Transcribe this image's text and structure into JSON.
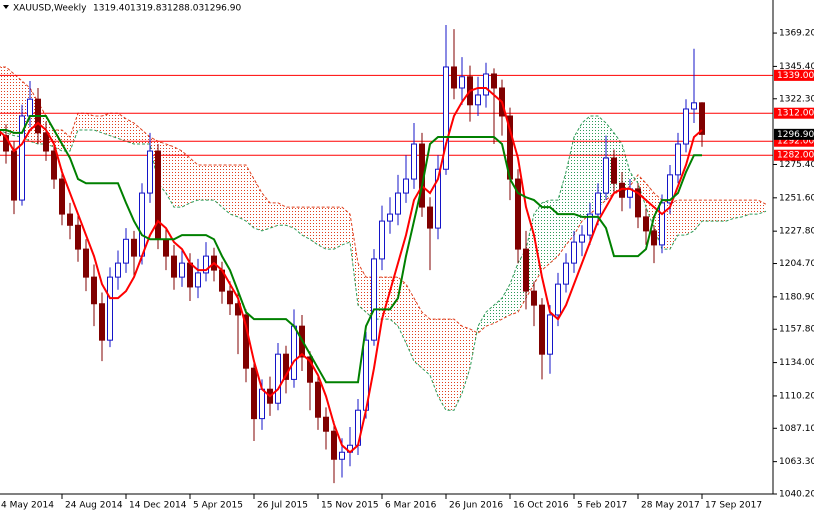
{
  "chart_data": {
    "type": "candlestick",
    "symbol": "XAUUSD,Weekly",
    "header_values": [
      "1319.40",
      "1319.83",
      "1288.03",
      "1296.90"
    ],
    "categories": [
      "4 May 2014",
      null,
      null,
      null,
      null,
      null,
      null,
      null,
      "24 Aug 2014",
      null,
      null,
      null,
      null,
      null,
      null,
      null,
      "14 Dec 2014",
      null,
      null,
      null,
      null,
      null,
      null,
      null,
      "5 Apr 2015",
      null,
      null,
      null,
      null,
      null,
      null,
      null,
      "26 Jul 2015",
      null,
      null,
      null,
      null,
      null,
      null,
      null,
      "15 Nov 2015",
      null,
      null,
      null,
      null,
      null,
      null,
      null,
      "6 Mar 2016",
      null,
      null,
      null,
      null,
      null,
      null,
      null,
      "26 Jun 2016",
      null,
      null,
      null,
      null,
      null,
      null,
      null,
      "16 Oct 2016",
      null,
      null,
      null,
      null,
      null,
      null,
      null,
      "5 Feb 2017",
      null,
      null,
      null,
      null,
      null,
      null,
      null,
      "28 May 2017",
      null,
      null,
      null,
      null,
      null,
      null,
      null,
      "17 Sep 2017",
      null,
      null,
      null,
      null,
      null,
      null,
      null,
      null
    ],
    "candles": {
      "up_color": "#1414c8",
      "down_color": "#800000",
      "open": [
        1300,
        1296,
        1285,
        1250,
        1310,
        1322,
        1298,
        1285,
        1265,
        1240,
        1232,
        1215,
        1195,
        1176,
        1150,
        1195,
        1205,
        1222,
        1210,
        1255,
        1285,
        1222,
        1210,
        1195,
        1205,
        1188,
        1198,
        1210,
        1200,
        1185,
        1176,
        1168,
        1130,
        1094,
        1115,
        1105,
        1140,
        1122,
        1160,
        1138,
        1120,
        1095,
        1085,
        1065,
        1070,
        1075,
        1100,
        1150,
        1208,
        1235,
        1240,
        1255,
        1265,
        1290,
        1245,
        1230,
        1272,
        1345,
        1330,
        1338,
        1318,
        1325,
        1340,
        1330,
        1310,
        1265,
        1215,
        1185,
        1175,
        1140,
        1168,
        1190,
        1205,
        1220,
        1225,
        1240,
        1255,
        1280,
        1262,
        1252,
        1258,
        1238,
        1228,
        1218,
        1248,
        1268,
        1290,
        1315,
        1319.4,
        null,
        null,
        null,
        null,
        null,
        null,
        null,
        null
      ],
      "high": [
        1312,
        1304,
        1292,
        1318,
        1335,
        1330,
        1306,
        1292,
        1272,
        1248,
        1240,
        1222,
        1204,
        1184,
        1202,
        1214,
        1230,
        1228,
        1262,
        1298,
        1290,
        1230,
        1218,
        1214,
        1212,
        1208,
        1220,
        1216,
        1206,
        1192,
        1184,
        1172,
        1136,
        1122,
        1124,
        1148,
        1146,
        1172,
        1168,
        1142,
        1126,
        1102,
        1092,
        1080,
        1088,
        1108,
        1156,
        1215,
        1246,
        1252,
        1268,
        1282,
        1305,
        1298,
        1252,
        1282,
        1375,
        1372,
        1352,
        1346,
        1338,
        1348,
        1344,
        1336,
        1316,
        1272,
        1228,
        1192,
        1180,
        1175,
        1198,
        1212,
        1228,
        1232,
        1248,
        1262,
        1296,
        1286,
        1270,
        1265,
        1262,
        1244,
        1232,
        1254,
        1275,
        1298,
        1322,
        1358,
        1319.83,
        null,
        null,
        null,
        null,
        null,
        null,
        null,
        null
      ],
      "low": [
        1288,
        1276,
        1240,
        1246,
        1302,
        1290,
        1278,
        1258,
        1232,
        1222,
        1206,
        1185,
        1160,
        1135,
        1145,
        1186,
        1198,
        1196,
        1204,
        1248,
        1215,
        1200,
        1186,
        1188,
        1178,
        1180,
        1192,
        1192,
        1176,
        1168,
        1140,
        1120,
        1078,
        1086,
        1096,
        1100,
        1112,
        1116,
        1128,
        1100,
        1086,
        1072,
        1048,
        1052,
        1060,
        1068,
        1094,
        1146,
        1200,
        1226,
        1232,
        1248,
        1258,
        1238,
        1200,
        1222,
        1268,
        1322,
        1318,
        1306,
        1310,
        1316,
        1290,
        1296,
        1250,
        1205,
        1172,
        1160,
        1122,
        1126,
        1160,
        1184,
        1198,
        1210,
        1218,
        1232,
        1250,
        1255,
        1242,
        1244,
        1230,
        1218,
        1205,
        1212,
        1240,
        1262,
        1284,
        1305,
        1288.03,
        null,
        null,
        null,
        null,
        null,
        null,
        null,
        null
      ],
      "close": [
        1296,
        1285,
        1250,
        1310,
        1322,
        1298,
        1285,
        1265,
        1240,
        1232,
        1215,
        1195,
        1176,
        1150,
        1195,
        1205,
        1222,
        1210,
        1255,
        1285,
        1222,
        1210,
        1195,
        1205,
        1188,
        1198,
        1210,
        1200,
        1185,
        1176,
        1168,
        1130,
        1094,
        1115,
        1105,
        1140,
        1122,
        1160,
        1138,
        1120,
        1095,
        1085,
        1065,
        1070,
        1075,
        1100,
        1150,
        1208,
        1235,
        1240,
        1255,
        1265,
        1290,
        1245,
        1230,
        1272,
        1345,
        1330,
        1338,
        1318,
        1325,
        1340,
        1330,
        1310,
        1265,
        1215,
        1185,
        1175,
        1140,
        1168,
        1190,
        1205,
        1220,
        1225,
        1240,
        1255,
        1280,
        1262,
        1252,
        1258,
        1238,
        1228,
        1218,
        1248,
        1268,
        1290,
        1315,
        1319.4,
        1296.9,
        null,
        null,
        null,
        null,
        null,
        null,
        null,
        null
      ]
    },
    "lines": [
      {
        "color": "#ff0000",
        "values": [
          1300,
          1295,
          1285,
          1290,
          1300,
          1305,
          1300,
          1290,
          1270,
          1255,
          1240,
          1225,
          1210,
          1190,
          1180,
          1180,
          1185,
          1195,
          1210,
          1225,
          1235,
          1230,
          1220,
          1215,
          1205,
          1200,
          1200,
          1205,
          1200,
          1190,
          1180,
          1160,
          1135,
          1115,
          1110,
          1115,
          1125,
          1135,
          1140,
          1135,
          1125,
          1110,
          1090,
          1075,
          1070,
          1075,
          1100,
          1130,
          1165,
          1185,
          1205,
          1225,
          1250,
          1260,
          1255,
          1265,
          1290,
          1310,
          1320,
          1328,
          1330,
          1330,
          1325,
          1320,
          1300,
          1280,
          1245,
          1225,
          1195,
          1170,
          1165,
          1175,
          1190,
          1205,
          1220,
          1235,
          1245,
          1255,
          1258,
          1258,
          1255,
          1250,
          1245,
          1240,
          1245,
          1260,
          1275,
          1295,
          1300,
          null,
          null,
          null,
          null,
          null,
          null,
          null,
          null
        ]
      },
      {
        "color": "#008000",
        "values": [
          1300,
          1300,
          1298,
          1298,
          1310,
          1310,
          1310,
          1300,
          1290,
          1280,
          1265,
          1262,
          1262,
          1262,
          1262,
          1262,
          1248,
          1235,
          1225,
          1222,
          1222,
          1222,
          1222,
          1225,
          1225,
          1225,
          1225,
          1222,
          1210,
          1200,
          1185,
          1170,
          1165,
          1165,
          1165,
          1165,
          1165,
          1160,
          1150,
          1140,
          1130,
          1120,
          1120,
          1120,
          1120,
          1120,
          1160,
          1172,
          1172,
          1172,
          1180,
          1210,
          1235,
          1260,
          1290,
          1295,
          1295,
          1295,
          1295,
          1295,
          1295,
          1295,
          1295,
          1290,
          1265,
          1255,
          1252,
          1250,
          1245,
          1245,
          1240,
          1240,
          1240,
          1238,
          1238,
          1238,
          1230,
          1210,
          1210,
          1210,
          1210,
          1215,
          1238,
          1250,
          1250,
          1255,
          1270,
          1282,
          1282,
          null,
          null,
          null,
          null,
          null,
          null,
          null,
          null
        ]
      }
    ],
    "cloud": {
      "up_color": "#e0401f",
      "down_color": "#2e9b57",
      "span_a": [
        1345,
        1345,
        1340,
        1335,
        1330,
        1320,
        1310,
        1300,
        1300,
        1295,
        1312,
        1312,
        1310,
        1310,
        1312,
        1312,
        1308,
        1305,
        1300,
        1295,
        1292,
        1290,
        1288,
        1285,
        1280,
        1275,
        1275,
        1275,
        1275,
        1275,
        1275,
        1275,
        1265,
        1255,
        1248,
        1248,
        1245,
        1245,
        1245,
        1245,
        1245,
        1245,
        1245,
        1245,
        1240,
        1205,
        1195,
        1195,
        1195,
        1195,
        1195,
        1190,
        1180,
        1170,
        1165,
        1165,
        1165,
        1165,
        1160,
        1158,
        1155,
        1160,
        1162,
        1165,
        1168,
        1170,
        1180,
        1190,
        1200,
        1205,
        1210,
        1218,
        1225,
        1235,
        1240,
        1245,
        1250,
        1255,
        1255,
        1260,
        1268,
        1262,
        1255,
        1250,
        1248,
        1250,
        1250,
        1250,
        1250,
        1250,
        1250,
        1250,
        1250,
        1250,
        1250,
        1250,
        1247
      ],
      "span_b": [
        1300,
        1298,
        1296,
        1295,
        1292,
        1290,
        1290,
        1288,
        1285,
        1285,
        1300,
        1300,
        1300,
        1298,
        1296,
        1294,
        1292,
        1290,
        1290,
        1290,
        1262,
        1255,
        1245,
        1245,
        1248,
        1250,
        1250,
        1250,
        1245,
        1240,
        1238,
        1235,
        1230,
        1228,
        1230,
        1232,
        1232,
        1230,
        1225,
        1222,
        1218,
        1215,
        1215,
        1218,
        1220,
        1175,
        1170,
        1165,
        1165,
        1165,
        1160,
        1148,
        1135,
        1130,
        1125,
        1110,
        1100,
        1100,
        1112,
        1130,
        1160,
        1170,
        1175,
        1180,
        1190,
        1205,
        1215,
        1240,
        1248,
        1250,
        1250,
        1270,
        1295,
        1305,
        1310,
        1310,
        1305,
        1298,
        1290,
        1270,
        1262,
        1245,
        1230,
        1215,
        1215,
        1225,
        1225,
        1228,
        1235,
        1235,
        1235,
        1235,
        1237,
        1238,
        1240,
        1240,
        1242
      ]
    },
    "levels": [
      {
        "value": 1339,
        "label": "1339.00"
      },
      {
        "value": 1312,
        "label": "1312.00"
      },
      {
        "value": 1292,
        "label": "1292.00"
      },
      {
        "value": 1282,
        "label": "1282.00"
      }
    ],
    "level_color": "#ff0000",
    "last_price": {
      "value": 1296.9,
      "label": "1296.90"
    },
    "ylim": [
      1040.2,
      1392.8
    ],
    "yticks": [
      {
        "value": 1369.2,
        "label": "1369.20"
      },
      {
        "value": 1345.4,
        "label": "1345.40"
      },
      {
        "value": 1322.3,
        "label": "1322.30"
      },
      {
        "value": 1275.4,
        "label": "1275.40"
      },
      {
        "value": 1251.6,
        "label": "1251.60"
      },
      {
        "value": 1227.8,
        "label": "1227.80"
      },
      {
        "value": 1204.7,
        "label": "1204.70"
      },
      {
        "value": 1180.9,
        "label": "1180.90"
      },
      {
        "value": 1157.8,
        "label": "1157.80"
      },
      {
        "value": 1134,
        "label": "1134.00"
      },
      {
        "value": 1110.2,
        "label": "1110.20"
      },
      {
        "value": 1087.1,
        "label": "1087.10"
      },
      {
        "value": 1063.3,
        "label": "1063.30"
      },
      {
        "value": 1040.2,
        "label": "1040.20"
      }
    ]
  }
}
